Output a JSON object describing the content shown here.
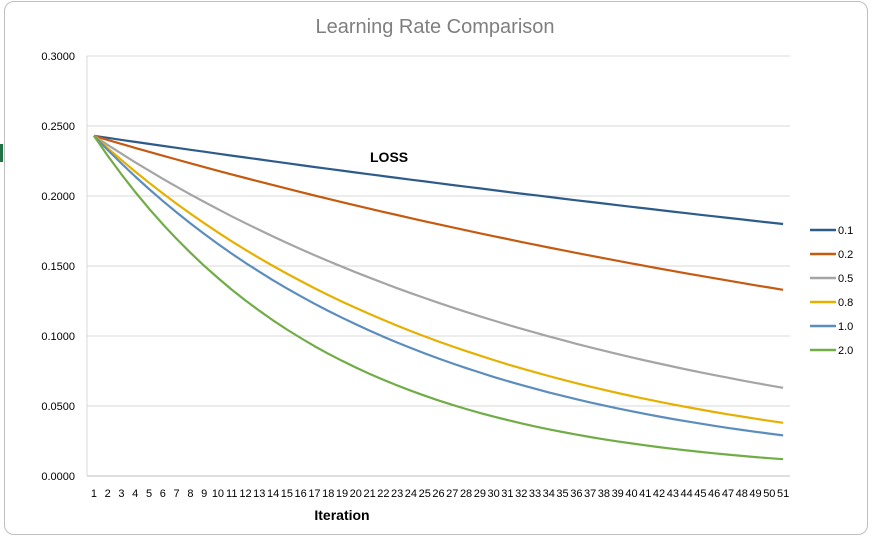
{
  "chart_data": {
    "type": "line",
    "title": "Learning Rate Comparison",
    "xlabel": "Iteration",
    "ylabel": "",
    "annotation": "LOSS",
    "x": [
      1,
      2,
      3,
      4,
      5,
      6,
      7,
      8,
      9,
      10,
      11,
      12,
      13,
      14,
      15,
      16,
      17,
      18,
      19,
      20,
      21,
      22,
      23,
      24,
      25,
      26,
      27,
      28,
      29,
      30,
      31,
      32,
      33,
      34,
      35,
      36,
      37,
      38,
      39,
      40,
      41,
      42,
      43,
      44,
      45,
      46,
      47,
      48,
      49,
      50,
      51
    ],
    "ylim": [
      0,
      0.3
    ],
    "yticks": [
      "0.0000",
      "0.0500",
      "0.1000",
      "0.1500",
      "0.2000",
      "0.2500",
      "0.3000"
    ],
    "grid": "horizontal",
    "legend_position": "right",
    "series": [
      {
        "name": "0.1",
        "color": "#2E5C8A",
        "start": 0.243,
        "end": 0.18
      },
      {
        "name": "0.2",
        "color": "#C55A11",
        "start": 0.243,
        "end": 0.133
      },
      {
        "name": "0.5",
        "color": "#A5A5A5",
        "start": 0.243,
        "end": 0.063
      },
      {
        "name": "0.8",
        "color": "#E6B000",
        "start": 0.243,
        "end": 0.038
      },
      {
        "name": "1.0",
        "color": "#5B8DBE",
        "start": 0.243,
        "end": 0.029
      },
      {
        "name": "2.0",
        "color": "#70AD47",
        "start": 0.243,
        "end": 0.012
      }
    ]
  }
}
